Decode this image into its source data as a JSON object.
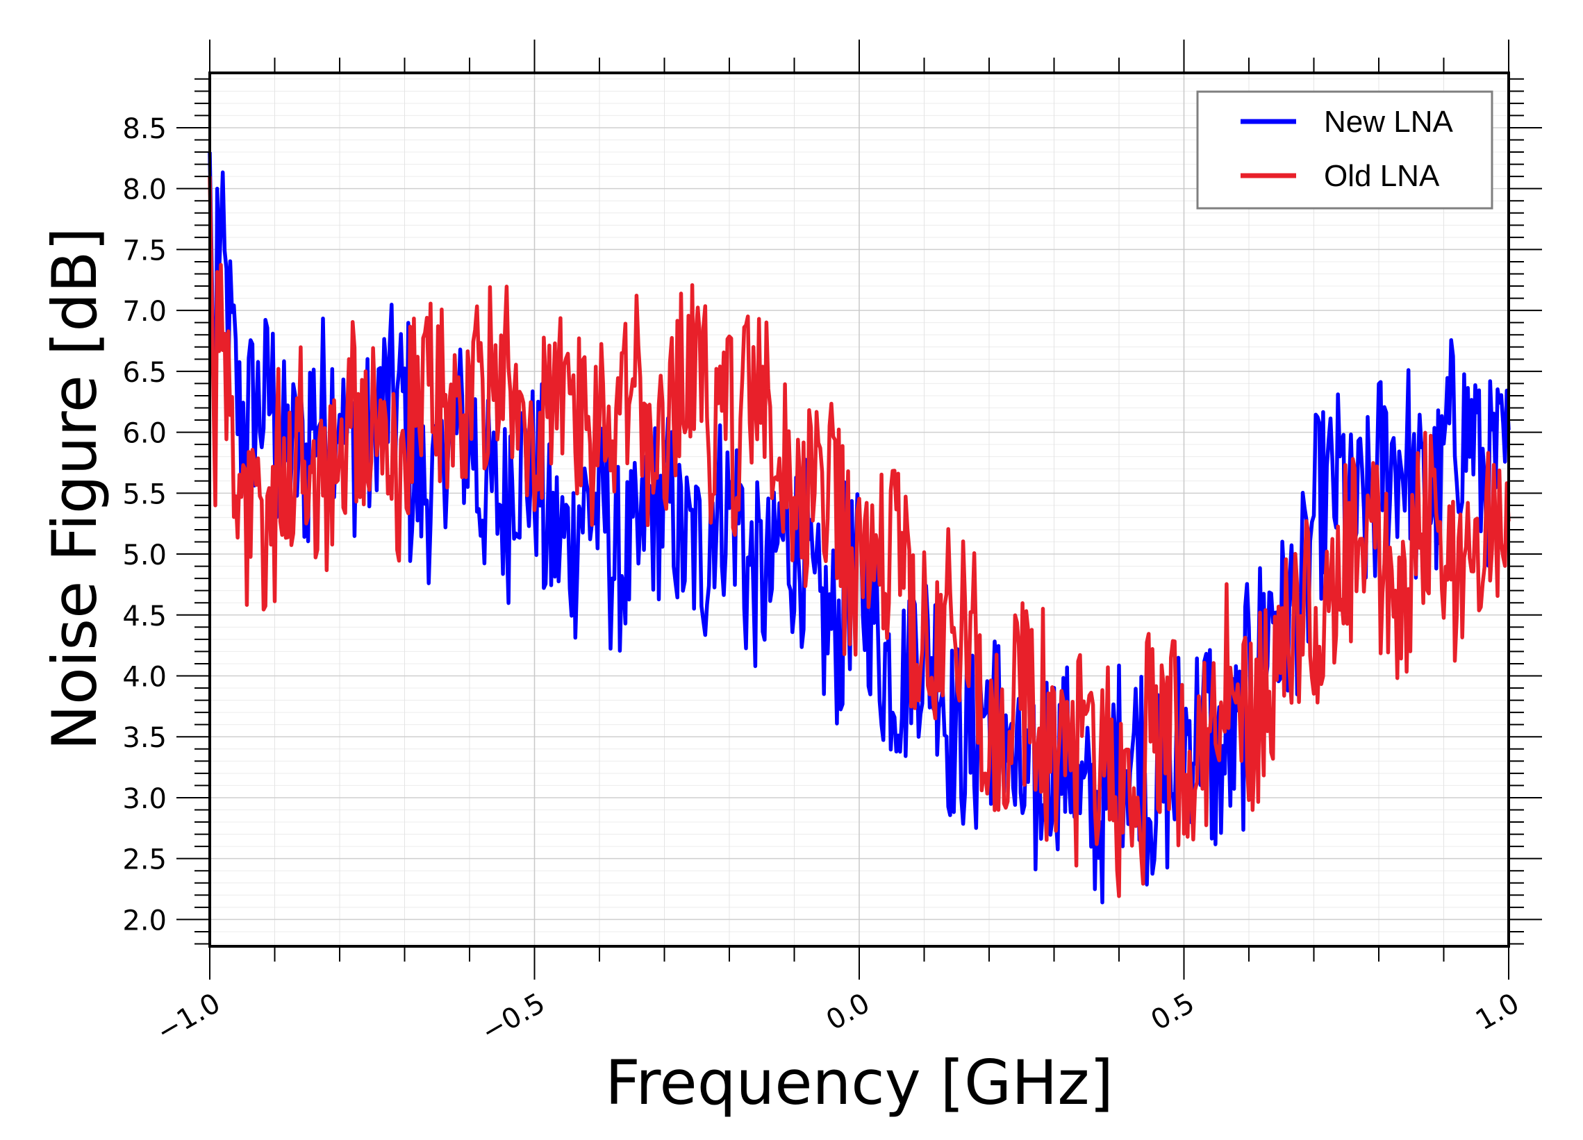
{
  "chart_data": {
    "type": "line",
    "title": "",
    "xlabel": "Frequency [GHz]",
    "ylabel": "Noise Figure [dB]",
    "xlim": [
      -1.0,
      1.0
    ],
    "ylim": [
      1.78,
      8.95
    ],
    "x_ticks": [
      -1.0,
      -0.5,
      0.0,
      0.5,
      1.0
    ],
    "x_tick_labels": [
      "−1.0",
      "−0.5",
      "0.0",
      "0.5",
      "1.0"
    ],
    "y_ticks": [
      2.0,
      2.5,
      3.0,
      3.5,
      4.0,
      4.5,
      5.0,
      5.5,
      6.0,
      6.5,
      7.0,
      7.5,
      8.0,
      8.5
    ],
    "y_tick_labels": [
      "2.0",
      "2.5",
      "3.0",
      "3.5",
      "4.0",
      "4.5",
      "5.0",
      "5.5",
      "6.0",
      "6.5",
      "7.0",
      "7.5",
      "8.0",
      "8.5"
    ],
    "grid": true,
    "legend_position": "top-right",
    "series": [
      {
        "name": "New LNA",
        "color": "#0000ff",
        "x": [
          -1.0,
          -0.95,
          -0.9,
          -0.85,
          -0.8,
          -0.75,
          -0.7,
          -0.65,
          -0.6,
          -0.55,
          -0.5,
          -0.45,
          -0.4,
          -0.35,
          -0.3,
          -0.25,
          -0.2,
          -0.15,
          -0.1,
          -0.05,
          0.0,
          0.05,
          0.1,
          0.15,
          0.2,
          0.25,
          0.3,
          0.35,
          0.4,
          0.45,
          0.5,
          0.55,
          0.6,
          0.65,
          0.7,
          0.75,
          0.8,
          0.85,
          0.9,
          0.95,
          1.0
        ],
        "y": [
          8.3,
          5.9,
          6.1,
          6.0,
          6.1,
          6.0,
          5.9,
          5.8,
          5.8,
          5.6,
          5.4,
          5.3,
          5.2,
          5.2,
          5.3,
          5.2,
          5.1,
          5.0,
          4.9,
          4.7,
          4.5,
          4.2,
          4.0,
          3.7,
          3.5,
          3.3,
          3.2,
          3.1,
          3.1,
          3.2,
          3.3,
          3.5,
          3.8,
          4.6,
          5.1,
          5.4,
          5.6,
          5.7,
          5.8,
          5.8,
          5.9
        ]
      },
      {
        "name": "Old LNA",
        "color": "#e8202a",
        "x": [
          -1.0,
          -0.95,
          -0.9,
          -0.85,
          -0.8,
          -0.75,
          -0.7,
          -0.65,
          -0.6,
          -0.55,
          -0.5,
          -0.45,
          -0.4,
          -0.35,
          -0.3,
          -0.25,
          -0.2,
          -0.15,
          -0.1,
          -0.05,
          0.0,
          0.05,
          0.1,
          0.15,
          0.2,
          0.25,
          0.3,
          0.35,
          0.4,
          0.45,
          0.5,
          0.55,
          0.6,
          0.65,
          0.7,
          0.75,
          0.8,
          0.85,
          0.9,
          0.95,
          1.0
        ],
        "y": [
          8.1,
          5.2,
          5.5,
          5.7,
          5.9,
          6.0,
          6.0,
          6.1,
          6.2,
          6.3,
          6.3,
          6.2,
          6.1,
          6.1,
          6.2,
          6.3,
          6.2,
          6.0,
          5.7,
          5.4,
          5.1,
          4.8,
          4.5,
          4.2,
          3.9,
          3.7,
          3.5,
          3.3,
          3.2,
          3.3,
          3.5,
          3.7,
          3.9,
          4.1,
          4.4,
          4.7,
          4.9,
          5.0,
          5.1,
          5.1,
          5.1
        ]
      }
    ],
    "noise": {
      "New LNA": [
        0.0,
        0.6,
        -0.7,
        0.5,
        -0.4,
        0.9,
        -0.8,
        0.6,
        -0.5,
        0.7,
        -0.6,
        0.4,
        -0.7,
        0.3,
        -0.5,
        0.8,
        -0.6,
        0.5,
        -0.8,
        0.6,
        -0.4,
        0.7,
        -0.5,
        0.6,
        -0.7,
        0.5,
        -0.6,
        0.8,
        -0.4,
        0.6,
        -0.7,
        0.5,
        -0.6,
        0.7,
        -0.5,
        0.4,
        -0.8,
        0.6,
        -0.5,
        0.7
      ],
      "Old LNA": [
        0.0,
        -0.5,
        0.7,
        -0.6,
        0.5,
        -0.8,
        0.6,
        -0.4,
        0.7,
        -0.6,
        0.8,
        -0.5,
        0.6,
        -0.7,
        0.5,
        -0.6,
        0.7,
        -0.4,
        0.6,
        -0.8,
        0.5,
        -0.6,
        0.7,
        -0.5,
        0.6,
        -0.7,
        0.4,
        -0.6,
        0.8,
        -0.5,
        0.6,
        -0.7,
        0.5,
        -0.4,
        0.7,
        -0.6,
        0.5,
        -0.8,
        0.6,
        -0.5
      ]
    }
  }
}
